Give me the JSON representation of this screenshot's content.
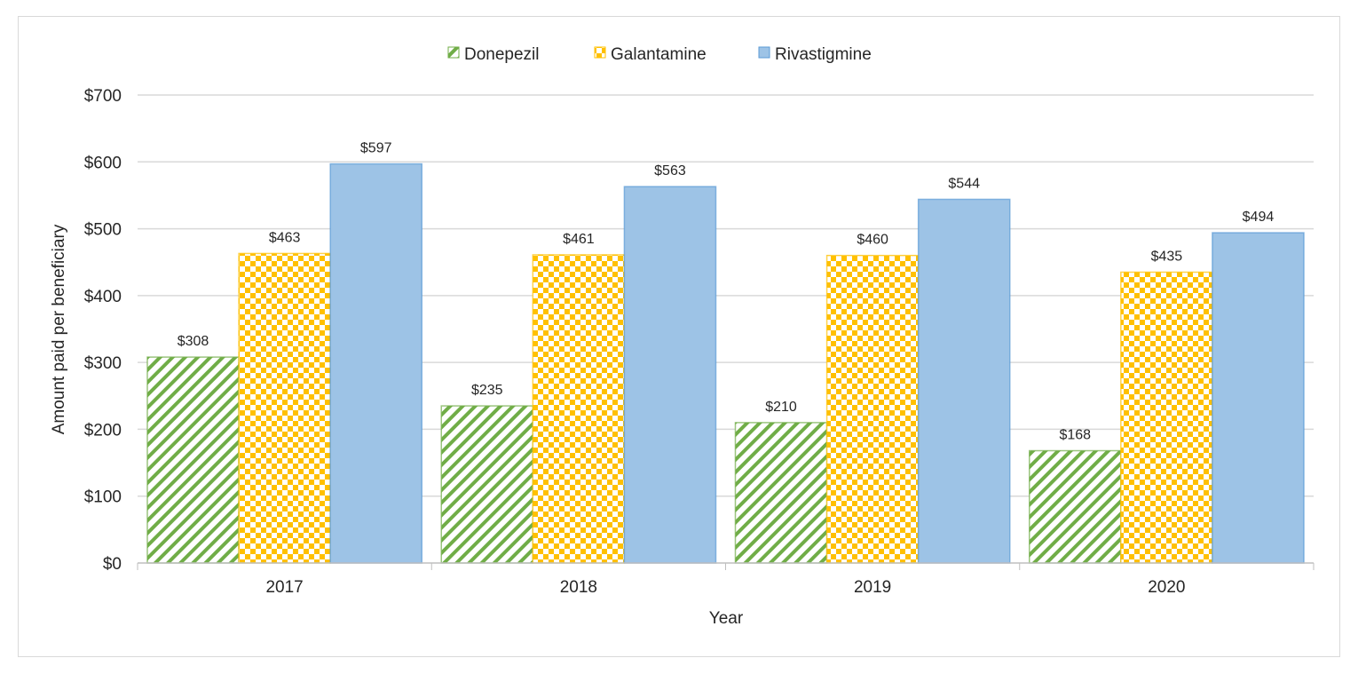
{
  "chart_data": {
    "type": "bar",
    "title": "",
    "xlabel": "Year",
    "ylabel": "Amount paid per beneficiary",
    "categories": [
      "2017",
      "2018",
      "2019",
      "2020"
    ],
    "series": [
      {
        "name": "Donepezil",
        "values": [
          308,
          235,
          210,
          168
        ],
        "labels": [
          "$308",
          "$235",
          "$210",
          "$168"
        ],
        "color": "#70ad47",
        "pattern": "diagonal-stripes"
      },
      {
        "name": "Galantamine",
        "values": [
          463,
          461,
          460,
          435
        ],
        "labels": [
          "$463",
          "$461",
          "$460",
          "$435"
        ],
        "color": "#ffc000",
        "pattern": "checkerboard"
      },
      {
        "name": "Rivastigmine",
        "values": [
          597,
          563,
          544,
          494
        ],
        "labels": [
          "$597",
          "$563",
          "$544",
          "$494"
        ],
        "color": "#9dc3e6",
        "pattern": "solid"
      }
    ],
    "ylim": [
      0,
      700
    ],
    "yticks": [
      0,
      100,
      200,
      300,
      400,
      500,
      600,
      700
    ],
    "ytick_labels": [
      "$0",
      "$100",
      "$200",
      "$300",
      "$400",
      "$500",
      "$600",
      "$700"
    ],
    "grid": true,
    "legend": "top-center"
  }
}
